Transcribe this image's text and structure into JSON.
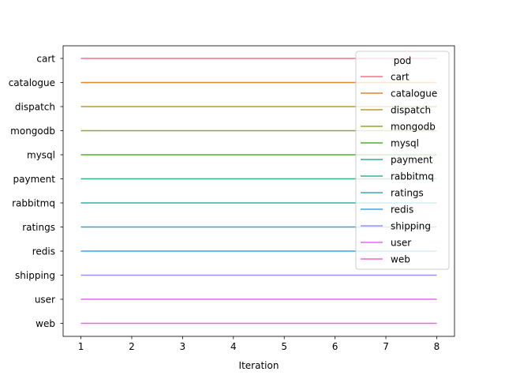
{
  "chart_data": {
    "type": "line",
    "title": "",
    "xlabel": "Iteration",
    "ylabel": "",
    "xlim": [
      0.65,
      8.35
    ],
    "x_ticks": [
      1,
      2,
      3,
      4,
      5,
      6,
      7,
      8
    ],
    "categories": [
      "cart",
      "catalogue",
      "dispatch",
      "mongodb",
      "mysql",
      "payment",
      "rabbitmq",
      "ratings",
      "redis",
      "shipping",
      "user",
      "web"
    ],
    "legend": {
      "title": "pod",
      "placement": "top-right"
    },
    "grid": false,
    "series": [
      {
        "name": "cart",
        "color": "#f77189",
        "x": [
          1,
          2,
          3,
          4,
          5,
          6,
          7,
          8
        ],
        "y": [
          "cart",
          "cart",
          "cart",
          "cart",
          "cart",
          "cart",
          "cart",
          "cart"
        ]
      },
      {
        "name": "catalogue",
        "color": "#e18632",
        "x": [
          1,
          2,
          3,
          4,
          5,
          6,
          7,
          8
        ],
        "y": [
          "catalogue",
          "catalogue",
          "catalogue",
          "catalogue",
          "catalogue",
          "catalogue",
          "catalogue",
          "catalogue"
        ]
      },
      {
        "name": "dispatch",
        "color": "#bb9832",
        "x": [
          1,
          2,
          3,
          4,
          5,
          6,
          7,
          8
        ],
        "y": [
          "dispatch",
          "dispatch",
          "dispatch",
          "dispatch",
          "dispatch",
          "dispatch",
          "dispatch",
          "dispatch"
        ]
      },
      {
        "name": "mongodb",
        "color": "#97a431",
        "x": [
          1,
          2,
          3,
          4,
          5,
          6,
          7,
          8
        ],
        "y": [
          "mongodb",
          "mongodb",
          "mongodb",
          "mongodb",
          "mongodb",
          "mongodb",
          "mongodb",
          "mongodb"
        ]
      },
      {
        "name": "mysql",
        "color": "#50b131",
        "x": [
          1,
          2,
          3,
          4,
          5,
          6,
          7,
          8
        ],
        "y": [
          "mysql",
          "mysql",
          "mysql",
          "mysql",
          "mysql",
          "mysql",
          "mysql",
          "mysql"
        ]
      },
      {
        "name": "payment",
        "color": "#34af8a",
        "x": [
          1,
          2,
          3,
          4,
          5,
          6,
          7,
          8
        ],
        "y": [
          "payment",
          "payment",
          "payment",
          "payment",
          "payment",
          "payment",
          "payment",
          "payment"
        ]
      },
      {
        "name": "rabbitmq",
        "color": "#36ab9f",
        "x": [
          1,
          2,
          3,
          4,
          5,
          6,
          7,
          8
        ],
        "y": [
          "rabbitmq",
          "rabbitmq",
          "rabbitmq",
          "rabbitmq",
          "rabbitmq",
          "rabbitmq",
          "rabbitmq",
          "rabbitmq"
        ]
      },
      {
        "name": "ratings",
        "color": "#38a8b2",
        "x": [
          1,
          2,
          3,
          4,
          5,
          6,
          7,
          8
        ],
        "y": [
          "ratings",
          "ratings",
          "ratings",
          "ratings",
          "ratings",
          "ratings",
          "ratings",
          "ratings"
        ]
      },
      {
        "name": "redis",
        "color": "#3ba3ec",
        "x": [
          1,
          2,
          3,
          4,
          5,
          6,
          7,
          8
        ],
        "y": [
          "redis",
          "redis",
          "redis",
          "redis",
          "redis",
          "redis",
          "redis",
          "redis"
        ]
      },
      {
        "name": "shipping",
        "color": "#9f8ff4",
        "x": [
          1,
          2,
          3,
          4,
          5,
          6,
          7,
          8
        ],
        "y": [
          "shipping",
          "shipping",
          "shipping",
          "shipping",
          "shipping",
          "shipping",
          "shipping",
          "shipping"
        ]
      },
      {
        "name": "user",
        "color": "#e866f4",
        "x": [
          1,
          2,
          3,
          4,
          5,
          6,
          7,
          8
        ],
        "y": [
          "user",
          "user",
          "user",
          "user",
          "user",
          "user",
          "user",
          "user"
        ]
      },
      {
        "name": "web",
        "color": "#f565cc",
        "x": [
          1,
          2,
          3,
          4,
          5,
          6,
          7,
          8
        ],
        "y": [
          "web",
          "web",
          "web",
          "web",
          "web",
          "web",
          "web",
          "web"
        ]
      }
    ]
  }
}
